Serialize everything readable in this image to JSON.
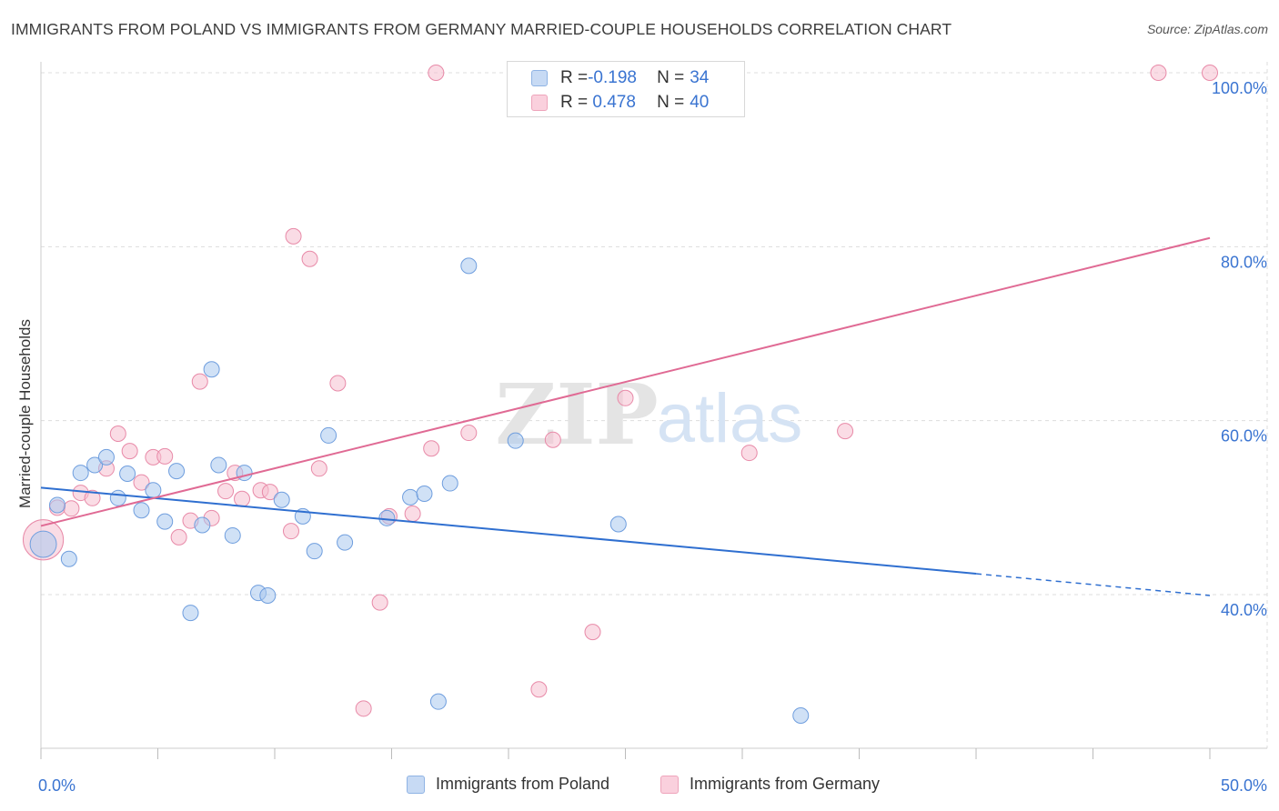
{
  "title": "IMMIGRANTS FROM POLAND VS IMMIGRANTS FROM GERMANY MARRIED-COUPLE HOUSEHOLDS CORRELATION CHART",
  "source": "Source: ZipAtlas.com",
  "watermark": {
    "zip": "ZIP",
    "atlas": "atlas"
  },
  "legend_top": {
    "poland": {
      "r_label": "R = ",
      "r_value": "-0.198",
      "n_label": "N = ",
      "n_value": "34"
    },
    "germany": {
      "r_label": "R = ",
      "r_value": " 0.478",
      "n_label": "N = ",
      "n_value": "40"
    }
  },
  "colors": {
    "poland_fill": "#aac8ee",
    "poland_stroke": "#6f9ede",
    "poland_line": "#2f6fd0",
    "germany_fill": "#f6bfd0",
    "germany_stroke": "#e88aa8",
    "germany_line": "#e06a94",
    "tick": "#3a74d1",
    "grid": "#dddddd"
  },
  "chart_data": {
    "type": "scatter",
    "title": "IMMIGRANTS FROM POLAND VS IMMIGRANTS FROM GERMANY MARRIED-COUPLE HOUSEHOLDS CORRELATION CHART",
    "xlabel": "",
    "ylabel": "Married-couple Households",
    "xlim": [
      0,
      50
    ],
    "ylim": [
      20,
      102
    ],
    "x_tick_labels": [
      "0.0%",
      "50.0%"
    ],
    "y_ticks": [
      40,
      60,
      80,
      100
    ],
    "y_tick_labels": [
      "40.0%",
      "60.0%",
      "80.0%",
      "100.0%"
    ],
    "grid": true,
    "legend_position": "top-center",
    "series": [
      {
        "name": "Immigrants from Poland",
        "r": -0.198,
        "n": 34,
        "trend": {
          "x0": 0,
          "y0": 52.3,
          "x1": 40,
          "y1": 42.4,
          "dashed_to_x": 50,
          "dashed_to_y": 39.9
        },
        "points": [
          [
            0.1,
            45.8,
            1.7
          ],
          [
            0.7,
            50.3,
            1
          ],
          [
            1.2,
            44.1,
            1
          ],
          [
            1.7,
            54.0,
            1
          ],
          [
            2.3,
            54.9,
            1
          ],
          [
            2.8,
            55.8,
            1
          ],
          [
            3.3,
            51.1,
            1
          ],
          [
            3.7,
            53.9,
            1
          ],
          [
            4.3,
            49.7,
            1
          ],
          [
            4.8,
            52.0,
            1
          ],
          [
            5.3,
            48.4,
            1
          ],
          [
            5.8,
            54.2,
            1
          ],
          [
            6.4,
            37.9,
            1
          ],
          [
            6.9,
            48.0,
            1
          ],
          [
            7.3,
            65.9,
            1
          ],
          [
            7.6,
            54.9,
            1
          ],
          [
            8.2,
            46.8,
            1
          ],
          [
            8.7,
            54.0,
            1
          ],
          [
            9.3,
            40.2,
            1
          ],
          [
            9.7,
            39.9,
            1
          ],
          [
            10.3,
            50.9,
            1
          ],
          [
            11.2,
            49.0,
            1
          ],
          [
            11.7,
            45.0,
            1
          ],
          [
            12.3,
            58.3,
            1
          ],
          [
            13.0,
            46.0,
            1
          ],
          [
            14.8,
            48.8,
            1
          ],
          [
            15.8,
            51.2,
            1
          ],
          [
            16.4,
            51.6,
            1
          ],
          [
            17.0,
            27.7,
            1
          ],
          [
            17.5,
            52.8,
            1
          ],
          [
            18.3,
            77.8,
            1
          ],
          [
            20.3,
            57.7,
            1
          ],
          [
            24.7,
            48.1,
            1
          ],
          [
            32.5,
            26.1,
            1
          ]
        ]
      },
      {
        "name": "Immigrants from Germany",
        "r": 0.478,
        "n": 40,
        "trend": {
          "x0": 0,
          "y0": 47.9,
          "x1": 50,
          "y1": 81.0
        },
        "points": [
          [
            0.1,
            46.3,
            2.6
          ],
          [
            0.7,
            50.0,
            1
          ],
          [
            1.3,
            49.9,
            1
          ],
          [
            1.7,
            51.7,
            1
          ],
          [
            2.2,
            51.1,
            1
          ],
          [
            2.8,
            54.5,
            1
          ],
          [
            3.3,
            58.5,
            1
          ],
          [
            3.8,
            56.5,
            1
          ],
          [
            4.3,
            52.9,
            1
          ],
          [
            4.8,
            55.8,
            1
          ],
          [
            5.3,
            55.9,
            1
          ],
          [
            5.9,
            46.6,
            1
          ],
          [
            6.4,
            48.5,
            1
          ],
          [
            6.8,
            64.5,
            1
          ],
          [
            7.3,
            48.8,
            1
          ],
          [
            7.9,
            51.9,
            1
          ],
          [
            8.3,
            54.0,
            1
          ],
          [
            8.6,
            51.0,
            1
          ],
          [
            9.4,
            52.0,
            1
          ],
          [
            9.8,
            51.8,
            1
          ],
          [
            10.7,
            47.3,
            1
          ],
          [
            10.8,
            81.2,
            1
          ],
          [
            11.5,
            78.6,
            1
          ],
          [
            11.9,
            54.5,
            1
          ],
          [
            12.7,
            64.3,
            1
          ],
          [
            13.8,
            26.9,
            1
          ],
          [
            14.5,
            39.1,
            1
          ],
          [
            14.9,
            49.0,
            1
          ],
          [
            15.9,
            49.3,
            1
          ],
          [
            16.7,
            56.8,
            1
          ],
          [
            16.9,
            100.0,
            1
          ],
          [
            18.3,
            58.6,
            1
          ],
          [
            21.3,
            29.1,
            1
          ],
          [
            21.9,
            57.8,
            1
          ],
          [
            23.6,
            35.7,
            1
          ],
          [
            25.0,
            62.6,
            1
          ],
          [
            30.3,
            56.3,
            1
          ],
          [
            34.4,
            58.8,
            1
          ],
          [
            47.8,
            100.0,
            1
          ],
          [
            50.0,
            100.0,
            1
          ]
        ]
      }
    ]
  }
}
